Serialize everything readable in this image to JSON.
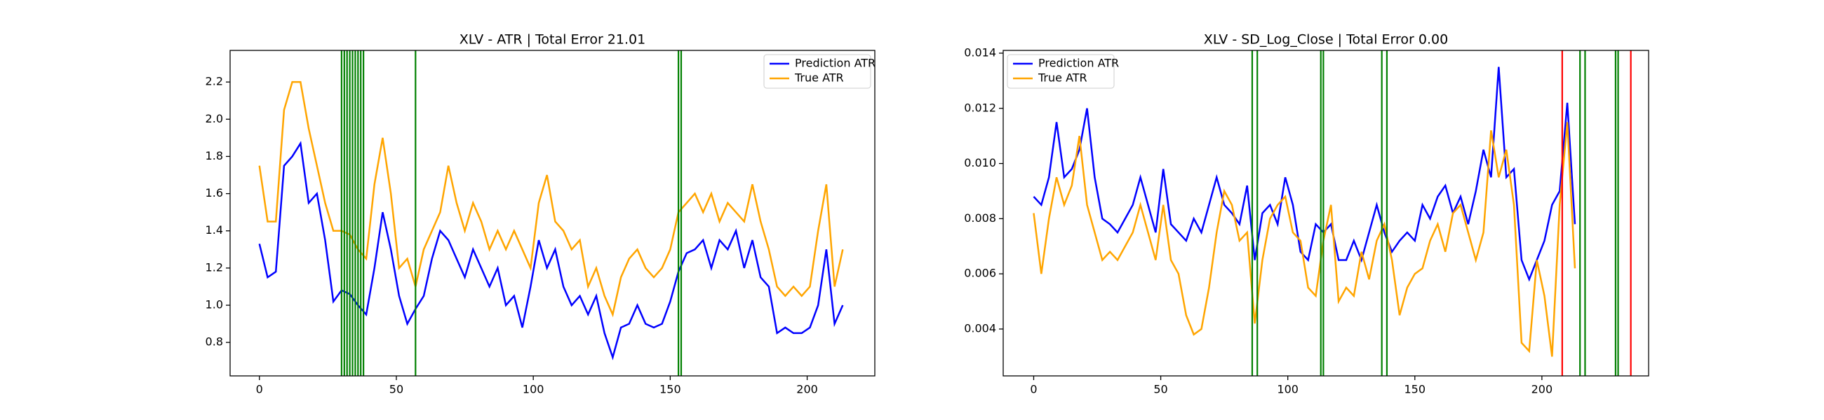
{
  "chart_data": [
    {
      "type": "line",
      "title": "XLV - ATR | Total Error 21.01",
      "legend": "upper right",
      "x": [
        0,
        3,
        6,
        9,
        12,
        15,
        18,
        21,
        24,
        27,
        30,
        33,
        36,
        39,
        42,
        45,
        48,
        51,
        54,
        57,
        60,
        63,
        66,
        69,
        72,
        75,
        78,
        81,
        84,
        87,
        90,
        93,
        96,
        99,
        102,
        105,
        108,
        111,
        114,
        117,
        120,
        123,
        126,
        129,
        132,
        135,
        138,
        141,
        144,
        147,
        150,
        153,
        156,
        159,
        162,
        165,
        168,
        171,
        174,
        177,
        180,
        183,
        186,
        189,
        192,
        195,
        198,
        201,
        204,
        207,
        210,
        213
      ],
      "series": [
        {
          "name": "Prediction ATR",
          "color": "blue",
          "values": [
            1.33,
            1.15,
            1.18,
            1.75,
            1.8,
            1.87,
            1.55,
            1.6,
            1.35,
            1.02,
            1.08,
            1.06,
            1.0,
            0.95,
            1.2,
            1.5,
            1.3,
            1.05,
            0.9,
            0.98,
            1.05,
            1.25,
            1.4,
            1.35,
            1.25,
            1.15,
            1.3,
            1.2,
            1.1,
            1.2,
            1.0,
            1.05,
            0.88,
            1.1,
            1.35,
            1.2,
            1.3,
            1.1,
            1.0,
            1.05,
            0.95,
            1.05,
            0.85,
            0.72,
            0.88,
            0.9,
            1.0,
            0.9,
            0.88,
            0.9,
            1.02,
            1.18,
            1.28,
            1.3,
            1.35,
            1.2,
            1.35,
            1.3,
            1.4,
            1.2,
            1.35,
            1.15,
            1.1,
            0.85,
            0.88,
            0.85,
            0.85,
            0.88,
            1.0,
            1.3,
            0.9,
            1.0
          ]
        },
        {
          "name": "True ATR",
          "color": "orange",
          "values": [
            1.75,
            1.45,
            1.45,
            2.05,
            2.2,
            2.2,
            1.95,
            1.75,
            1.55,
            1.4,
            1.4,
            1.38,
            1.3,
            1.25,
            1.65,
            1.9,
            1.6,
            1.2,
            1.25,
            1.1,
            1.3,
            1.4,
            1.5,
            1.75,
            1.55,
            1.4,
            1.55,
            1.45,
            1.3,
            1.4,
            1.3,
            1.4,
            1.3,
            1.2,
            1.55,
            1.7,
            1.45,
            1.4,
            1.3,
            1.35,
            1.1,
            1.2,
            1.05,
            0.95,
            1.15,
            1.25,
            1.3,
            1.2,
            1.15,
            1.2,
            1.3,
            1.5,
            1.55,
            1.6,
            1.5,
            1.6,
            1.45,
            1.55,
            1.5,
            1.45,
            1.65,
            1.45,
            1.3,
            1.1,
            1.05,
            1.1,
            1.05,
            1.1,
            1.4,
            1.65,
            1.1,
            1.3
          ]
        }
      ],
      "vlines": [
        {
          "color": "green",
          "x": [
            30,
            31,
            32,
            33,
            34,
            35,
            36,
            37,
            38,
            57,
            153,
            154
          ]
        }
      ],
      "xlim": [
        -10.7,
        224.7
      ],
      "xticks": [
        0,
        50,
        100,
        150,
        200
      ],
      "ylim": [
        0.62,
        2.37
      ],
      "yticks": [
        0.8,
        {
          "value": 1.0,
          "label": "1.0"
        },
        1.2,
        1.4,
        1.6,
        1.8,
        {
          "value": 2.0,
          "label": "2.0"
        },
        2.2
      ]
    },
    {
      "type": "line",
      "title": "XLV - SD_Log_Close | Total Error 0.00",
      "legend": "upper left",
      "x": [
        0,
        3,
        6,
        9,
        12,
        15,
        18,
        21,
        24,
        27,
        30,
        33,
        36,
        39,
        42,
        45,
        48,
        51,
        54,
        57,
        60,
        63,
        66,
        69,
        72,
        75,
        78,
        81,
        84,
        87,
        90,
        93,
        96,
        99,
        102,
        105,
        108,
        111,
        114,
        117,
        120,
        123,
        126,
        129,
        132,
        135,
        138,
        141,
        144,
        147,
        150,
        153,
        156,
        159,
        162,
        165,
        168,
        171,
        174,
        177,
        180,
        183,
        186,
        189,
        192,
        195,
        198,
        201,
        204,
        207,
        210,
        213
      ],
      "series": [
        {
          "name": "Prediction ATR",
          "color": "blue",
          "values": [
            0.0088,
            0.0085,
            0.0095,
            0.0115,
            0.0095,
            0.0098,
            0.0105,
            0.012,
            0.0095,
            0.008,
            0.0078,
            0.0075,
            0.008,
            0.0085,
            0.0095,
            0.0085,
            0.0075,
            0.0098,
            0.0078,
            0.0075,
            0.0072,
            0.008,
            0.0075,
            0.0085,
            0.0095,
            0.0085,
            0.0082,
            0.0078,
            0.0092,
            0.0065,
            0.0082,
            0.0085,
            0.0078,
            0.0095,
            0.0085,
            0.0068,
            0.0065,
            0.0078,
            0.0075,
            0.0078,
            0.0065,
            0.0065,
            0.0072,
            0.0065,
            0.0075,
            0.0085,
            0.0075,
            0.0068,
            0.0072,
            0.0075,
            0.0072,
            0.0085,
            0.008,
            0.0088,
            0.0092,
            0.0082,
            0.0088,
            0.0078,
            0.009,
            0.0105,
            0.0095,
            0.0135,
            0.0095,
            0.0098,
            0.0065,
            0.0058,
            0.0065,
            0.0072,
            0.0085,
            0.009,
            0.0122,
            0.0078
          ]
        },
        {
          "name": "True ATR",
          "color": "orange",
          "values": [
            0.0082,
            0.006,
            0.008,
            0.0095,
            0.0085,
            0.0092,
            0.011,
            0.0085,
            0.0075,
            0.0065,
            0.0068,
            0.0065,
            0.007,
            0.0075,
            0.0085,
            0.0075,
            0.0065,
            0.0085,
            0.0065,
            0.006,
            0.0045,
            0.0038,
            0.004,
            0.0055,
            0.0075,
            0.009,
            0.0085,
            0.0072,
            0.0075,
            0.0042,
            0.0065,
            0.008,
            0.0085,
            0.0088,
            0.0075,
            0.0072,
            0.0055,
            0.0052,
            0.0072,
            0.0085,
            0.005,
            0.0055,
            0.0052,
            0.0068,
            0.0058,
            0.0072,
            0.0078,
            0.0065,
            0.0045,
            0.0055,
            0.006,
            0.0062,
            0.0072,
            0.0078,
            0.0068,
            0.0082,
            0.0085,
            0.0075,
            0.0065,
            0.0075,
            0.0112,
            0.0095,
            0.0105,
            0.0085,
            0.0035,
            0.0032,
            0.0065,
            0.0052,
            0.003,
            0.0085,
            0.0115,
            0.0062
          ]
        }
      ],
      "vlines": [
        {
          "color": "green",
          "x": [
            86,
            88,
            113,
            114,
            137,
            139,
            215,
            217,
            229,
            230
          ]
        },
        {
          "color": "red",
          "x": [
            208,
            235
          ]
        }
      ],
      "xlim": [
        -12,
        242
      ],
      "xticks": [
        0,
        50,
        100,
        150,
        200
      ],
      "ylim": [
        0.0023,
        0.0141
      ],
      "yticks": [
        0.004,
        0.006,
        0.008,
        {
          "value": 0.01,
          "label": "0.010"
        },
        0.012,
        0.014
      ]
    }
  ]
}
